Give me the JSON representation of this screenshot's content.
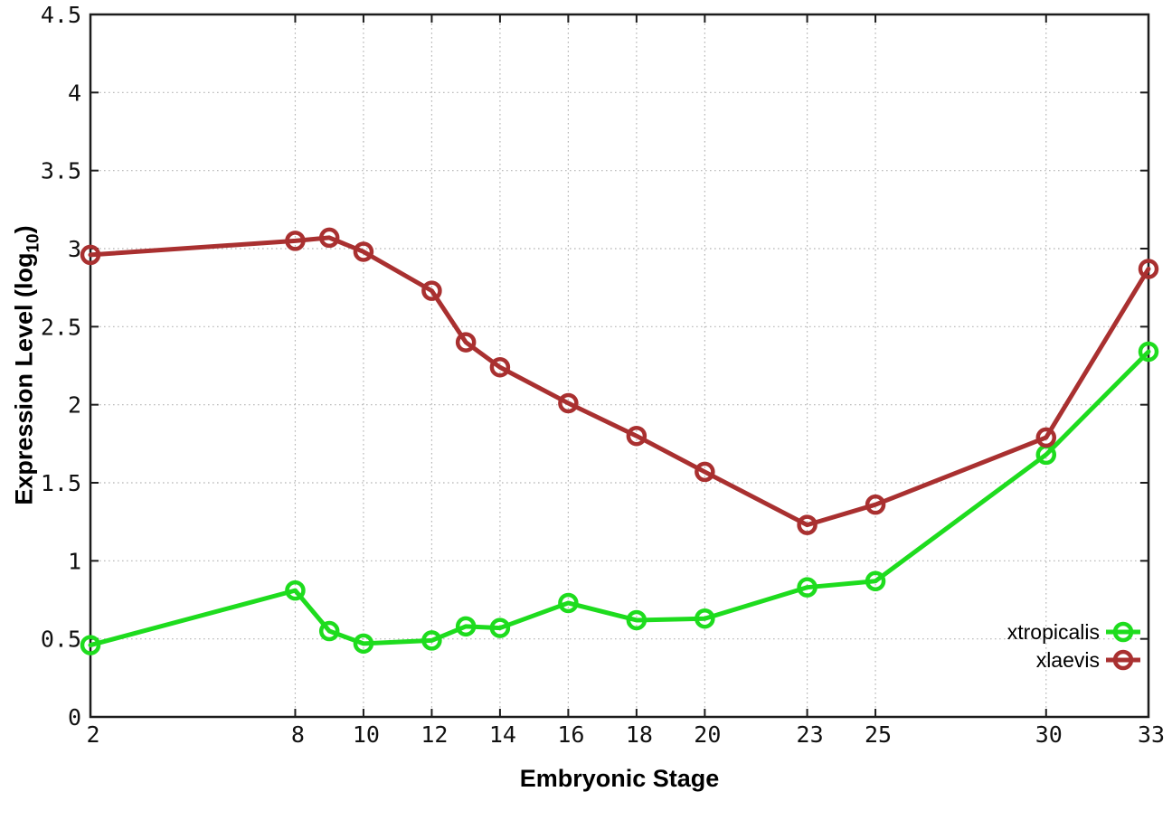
{
  "chart_data": {
    "type": "line",
    "title": "",
    "xlabel": "Embryonic Stage",
    "ylabel": "Expression Level (log10)",
    "ylabel_parts": {
      "main": "Expression Level (log",
      "sub": "10",
      "close": ")"
    },
    "xlim": [
      2,
      33
    ],
    "ylim": [
      0,
      4.5
    ],
    "x": [
      2,
      8,
      9,
      10,
      12,
      13,
      14,
      16,
      18,
      20,
      23,
      25,
      30,
      33
    ],
    "series": [
      {
        "name": "xtropicalis",
        "color": "#1edc1e",
        "values": [
          0.46,
          0.81,
          0.55,
          0.47,
          0.49,
          0.58,
          0.57,
          0.73,
          0.62,
          0.63,
          0.83,
          0.87,
          1.68,
          2.34
        ]
      },
      {
        "name": "xlaevis",
        "color": "#a93030",
        "values": [
          2.96,
          3.05,
          3.07,
          2.98,
          2.73,
          2.4,
          2.24,
          2.01,
          1.8,
          1.57,
          1.23,
          1.36,
          1.79,
          2.87
        ]
      }
    ],
    "x_ticks": [
      2,
      8,
      10,
      12,
      14,
      16,
      18,
      20,
      23,
      25,
      30,
      33
    ],
    "x_tick_labels": [
      "2",
      "8",
      "10",
      "12",
      "14",
      "16",
      "18",
      "20",
      "23",
      "25",
      "30",
      "33"
    ],
    "y_ticks": [
      0,
      0.5,
      1,
      1.5,
      2,
      2.5,
      3,
      3.5,
      4,
      4.5
    ],
    "y_tick_labels": [
      "0",
      "0.5",
      "1",
      "1.5",
      "2",
      "2.5",
      "3",
      "3.5",
      "4",
      "4.5"
    ],
    "grid": true,
    "grid_style": "dotted",
    "legend_position": "bottom-right",
    "legend": [
      "xtropicalis",
      "xlaevis"
    ],
    "colors": {
      "background": "#ffffff",
      "border": "#1c1c1c",
      "gridline": "#b5b5b5",
      "tick_label": "#111111",
      "xtropicalis": "#1edc1e",
      "xlaevis": "#a93030"
    }
  }
}
